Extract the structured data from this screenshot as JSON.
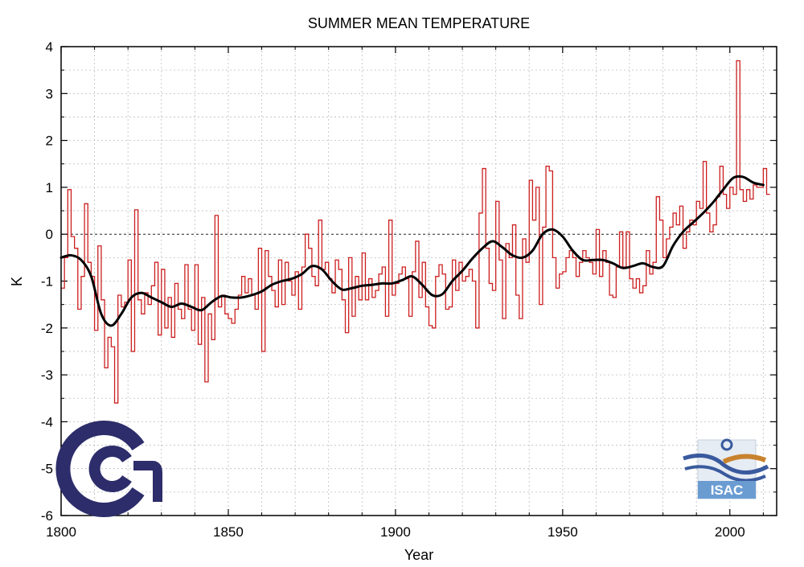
{
  "chart_data": {
    "type": "line",
    "title": "SUMMER MEAN TEMPERATURE",
    "xlabel": "Year",
    "ylabel": "K",
    "xlim": [
      1800,
      2014
    ],
    "ylim": [
      -6,
      4
    ],
    "x_ticks": [
      1800,
      1850,
      1900,
      1950,
      2000
    ],
    "x_minor_step": 10,
    "y_ticks": [
      -6,
      -5,
      -4,
      -3,
      -2,
      -1,
      0,
      1,
      2,
      3,
      4
    ],
    "y_minor_step": 0.5,
    "x_tick_labels": [
      "1800",
      "1850",
      "1900",
      "1950",
      "2000"
    ],
    "y_tick_labels": [
      "-6",
      "-5",
      "-4",
      "-3",
      "-2",
      "-1",
      "0",
      "1",
      "2",
      "3",
      "4"
    ],
    "grid": true,
    "zero_line": true,
    "series": [
      {
        "style": "step",
        "color": "#cc1f1f",
        "start_year": 1800,
        "values": [
          -1.15,
          -0.5,
          0.95,
          -0.05,
          -0.3,
          -1.6,
          -0.9,
          0.65,
          -0.6,
          -0.9,
          -2.05,
          -0.25,
          -1.4,
          -2.85,
          -2.2,
          -2.4,
          -3.6,
          -1.3,
          -1.55,
          -1.45,
          -0.55,
          -2.5,
          0.52,
          -1.4,
          -1.7,
          -1.25,
          -1.5,
          -1.1,
          -0.6,
          -2.15,
          -0.75,
          -2.0,
          -1.35,
          -2.2,
          -1.05,
          -1.6,
          -1.8,
          -0.65,
          -1.6,
          -2.05,
          -0.65,
          -2.35,
          -1.35,
          -3.15,
          -1.7,
          -2.25,
          0.4,
          -1.55,
          -1.3,
          -1.7,
          -1.8,
          -1.9,
          -1.6,
          -1.3,
          -0.9,
          -1.25,
          -0.95,
          -1.3,
          -1.6,
          -0.3,
          -2.5,
          -0.35,
          -0.9,
          -1.2,
          -1.55,
          -0.55,
          -1.5,
          -0.6,
          -1.0,
          -1.3,
          -0.8,
          -1.6,
          -0.7,
          0.0,
          -0.3,
          -0.9,
          -1.1,
          0.3,
          -0.75,
          -0.6,
          -0.95,
          -1.25,
          -0.55,
          -0.75,
          -1.4,
          -2.1,
          -0.5,
          -1.75,
          -0.9,
          -1.4,
          -0.4,
          -1.4,
          -0.95,
          -1.35,
          -1.2,
          -0.85,
          -0.7,
          -1.75,
          0.3,
          -1.3,
          -1.05,
          -0.85,
          -0.7,
          -0.95,
          -1.75,
          -0.8,
          -0.15,
          -1.35,
          -0.6,
          -1.55,
          -1.95,
          -2.0,
          -0.9,
          -0.65,
          -0.85,
          -1.6,
          -1.55,
          -0.55,
          -1.2,
          -0.6,
          -1.0,
          -0.9,
          -0.75,
          -1.0,
          -2.0,
          0.45,
          1.4,
          -0.3,
          -1.05,
          -1.2,
          0.7,
          -0.55,
          -1.8,
          -0.2,
          -0.5,
          0.2,
          -1.3,
          -1.8,
          -0.1,
          -0.6,
          1.15,
          0.3,
          1.0,
          -1.5,
          0.15,
          1.45,
          1.35,
          -0.5,
          -1.15,
          -0.85,
          -0.8,
          -0.5,
          -0.35,
          -0.5,
          -0.9,
          -0.6,
          -0.35,
          -0.5,
          -0.6,
          -0.85,
          0.1,
          -0.9,
          -0.35,
          -0.6,
          -1.3,
          -1.35,
          -0.7,
          0.05,
          -0.7,
          0.05,
          -0.95,
          -1.15,
          -0.95,
          -1.25,
          -1.1,
          -0.35,
          -0.85,
          -0.6,
          0.8,
          0.3,
          -0.5,
          -0.1,
          0.15,
          0.45,
          0.2,
          0.6,
          -0.3,
          0.05,
          0.3,
          0.2,
          0.7,
          0.55,
          1.55,
          0.45,
          0.05,
          0.2,
          0.8,
          1.45,
          0.85,
          0.55,
          1.0,
          0.85,
          3.7,
          0.95,
          0.7,
          0.95,
          0.75,
          1.05,
          1.0,
          1.0,
          1.4,
          0.85
        ]
      },
      {
        "style": "smooth",
        "color": "#000000",
        "x": [
          1800,
          1803,
          1806,
          1809,
          1812,
          1815,
          1818,
          1821,
          1824,
          1827,
          1830,
          1833,
          1836,
          1839,
          1842,
          1845,
          1848,
          1851,
          1854,
          1857,
          1860,
          1863,
          1866,
          1869,
          1872,
          1875,
          1878,
          1881,
          1884,
          1887,
          1890,
          1893,
          1896,
          1899,
          1902,
          1905,
          1908,
          1911,
          1914,
          1917,
          1920,
          1923,
          1926,
          1929,
          1932,
          1935,
          1938,
          1941,
          1944,
          1947,
          1950,
          1953,
          1956,
          1959,
          1962,
          1965,
          1968,
          1971,
          1974,
          1977,
          1980,
          1983,
          1986,
          1989,
          1992,
          1995,
          1998,
          2001,
          2004,
          2007,
          2010
        ],
        "values": [
          -0.5,
          -0.45,
          -0.55,
          -0.9,
          -1.7,
          -1.95,
          -1.7,
          -1.35,
          -1.25,
          -1.35,
          -1.45,
          -1.55,
          -1.48,
          -1.55,
          -1.62,
          -1.45,
          -1.32,
          -1.35,
          -1.35,
          -1.3,
          -1.22,
          -1.08,
          -1.0,
          -0.95,
          -0.85,
          -0.68,
          -0.75,
          -1.0,
          -1.18,
          -1.15,
          -1.1,
          -1.08,
          -1.05,
          -1.05,
          -0.98,
          -0.9,
          -1.08,
          -1.3,
          -1.28,
          -1.0,
          -0.78,
          -0.52,
          -0.3,
          -0.15,
          -0.28,
          -0.45,
          -0.5,
          -0.35,
          0.0,
          0.1,
          -0.05,
          -0.35,
          -0.55,
          -0.55,
          -0.55,
          -0.62,
          -0.72,
          -0.68,
          -0.62,
          -0.7,
          -0.68,
          -0.25,
          0.05,
          0.25,
          0.45,
          0.68,
          0.95,
          1.2,
          1.22,
          1.1,
          1.05
        ]
      }
    ]
  },
  "logos": {
    "cnr": {
      "name": "cnr-logo",
      "color": "#2d2d6b"
    },
    "isac": {
      "name": "isac-logo",
      "text": "ISAC",
      "bg": "#6a9cd2",
      "accent": "#c8822e",
      "wave": "#3a5a9e"
    }
  }
}
